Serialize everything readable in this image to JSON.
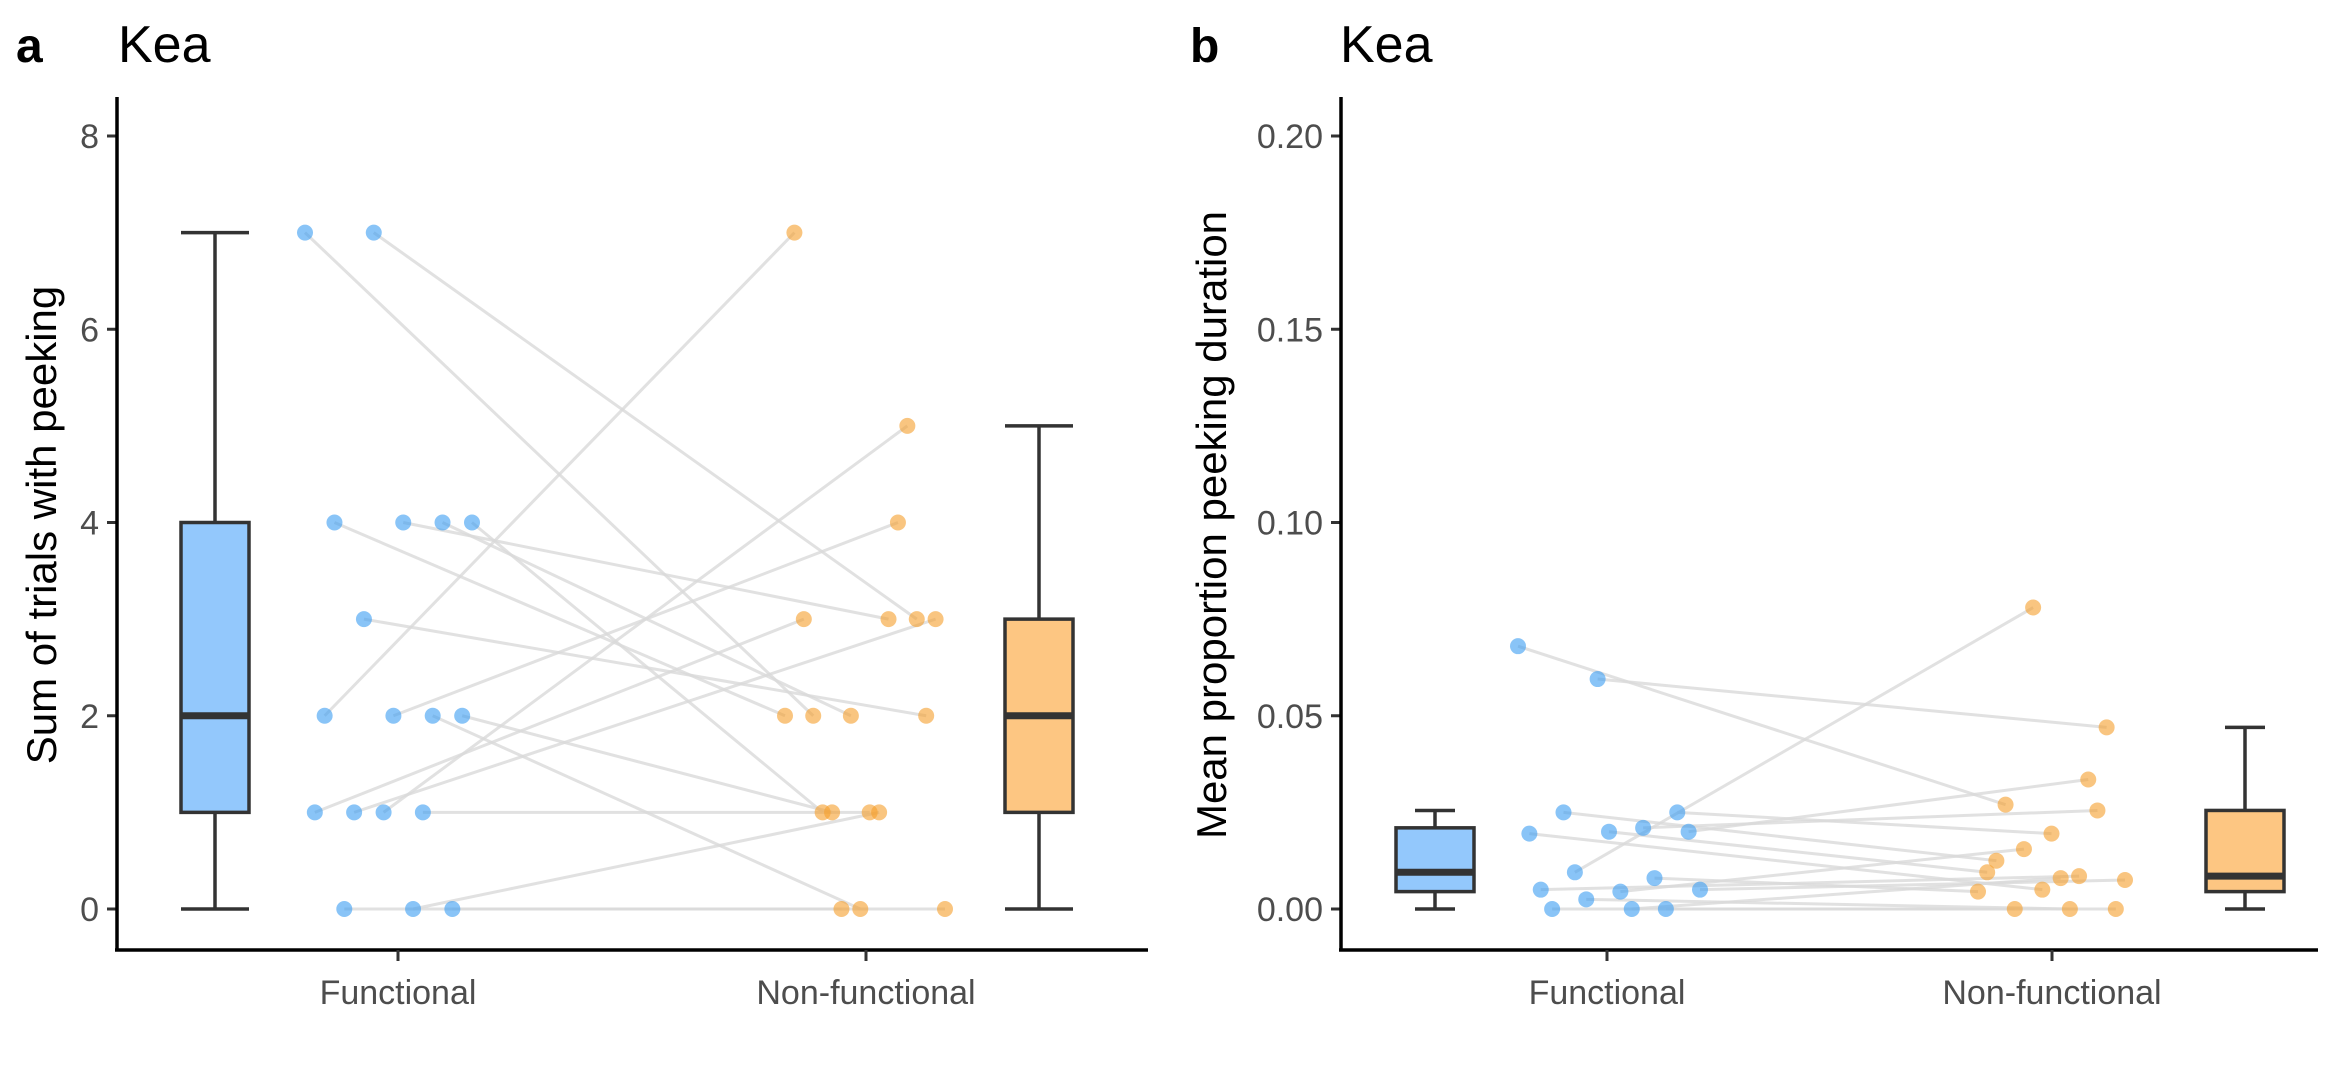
{
  "colors": {
    "functional_point": "#3a9cf2",
    "functional_box": "#93c8fc",
    "nonfunctional_point": "#f59f2c",
    "nonfunctional_box": "#fdc682",
    "pair_line": "#d9d9d9",
    "box_stroke": "#333333"
  },
  "chart_data": [
    {
      "type": "box",
      "panel_label": "a",
      "title": "Kea",
      "xlabel": "",
      "ylabel": "Sum of trials with peeking",
      "categories": [
        "Functional",
        "Non-functional"
      ],
      "ylim": [
        0,
        8
      ],
      "yticks": [
        0,
        2,
        4,
        6,
        8
      ],
      "ytick_labels": [
        "0",
        "2",
        "4",
        "6",
        "8"
      ],
      "boxes": [
        {
          "category": "Functional",
          "min": 0,
          "q1": 1,
          "median": 2,
          "q3": 4,
          "max": 7
        },
        {
          "category": "Non-functional",
          "min": 0,
          "q1": 1,
          "median": 2,
          "q3": 3,
          "max": 5
        }
      ],
      "pairs": [
        {
          "functional": 7,
          "nonfunctional": 2
        },
        {
          "functional": 7,
          "nonfunctional": 3
        },
        {
          "functional": 4,
          "nonfunctional": 2
        },
        {
          "functional": 4,
          "nonfunctional": 2
        },
        {
          "functional": 4,
          "nonfunctional": 3
        },
        {
          "functional": 4,
          "nonfunctional": 1
        },
        {
          "functional": 3,
          "nonfunctional": 2
        },
        {
          "functional": 2,
          "nonfunctional": 0
        },
        {
          "functional": 2,
          "nonfunctional": 7
        },
        {
          "functional": 2,
          "nonfunctional": 4
        },
        {
          "functional": 2,
          "nonfunctional": 1
        },
        {
          "functional": 1,
          "nonfunctional": 3
        },
        {
          "functional": 1,
          "nonfunctional": 1
        },
        {
          "functional": 1,
          "nonfunctional": 3
        },
        {
          "functional": 1,
          "nonfunctional": 5
        },
        {
          "functional": 0,
          "nonfunctional": 0
        },
        {
          "functional": 0,
          "nonfunctional": 0
        },
        {
          "functional": 0,
          "nonfunctional": 1
        }
      ]
    },
    {
      "type": "box",
      "panel_label": "b",
      "title": "Kea",
      "xlabel": "",
      "ylabel": "Mean proportion peeking duration",
      "categories": [
        "Functional",
        "Non-functional"
      ],
      "ylim": [
        0,
        0.2
      ],
      "yticks": [
        0,
        0.05,
        0.1,
        0.15,
        0.2
      ],
      "ytick_labels": [
        "0.00",
        "0.05",
        "0.10",
        "0.15",
        "0.20"
      ],
      "boxes": [
        {
          "category": "Functional",
          "min": 0,
          "q1": 0.0045,
          "median": 0.0095,
          "q3": 0.021,
          "max": 0.0255
        },
        {
          "category": "Non-functional",
          "min": 0,
          "q1": 0.0045,
          "median": 0.0085,
          "q3": 0.0255,
          "max": 0.047
        }
      ],
      "pairs": [
        {
          "functional": 0.068,
          "nonfunctional": 0.027
        },
        {
          "functional": 0.0595,
          "nonfunctional": 0.047
        },
        {
          "functional": 0.025,
          "nonfunctional": 0.0195
        },
        {
          "functional": 0.025,
          "nonfunctional": 0.0125
        },
        {
          "functional": 0.021,
          "nonfunctional": 0.0255
        },
        {
          "functional": 0.0195,
          "nonfunctional": 0.005
        },
        {
          "functional": 0.02,
          "nonfunctional": 0.0095
        },
        {
          "functional": 0.02,
          "nonfunctional": 0.0335
        },
        {
          "functional": 0.0095,
          "nonfunctional": 0.078
        },
        {
          "functional": 0.008,
          "nonfunctional": 0.0045
        },
        {
          "functional": 0.005,
          "nonfunctional": 0.0085
        },
        {
          "functional": 0.0045,
          "nonfunctional": 0.0155
        },
        {
          "functional": 0.005,
          "nonfunctional": 0.0075
        },
        {
          "functional": 0.0025,
          "nonfunctional": 0
        },
        {
          "functional": 0,
          "nonfunctional": 0
        },
        {
          "functional": 0,
          "nonfunctional": 0
        },
        {
          "functional": 0,
          "nonfunctional": 0.008
        }
      ]
    }
  ]
}
